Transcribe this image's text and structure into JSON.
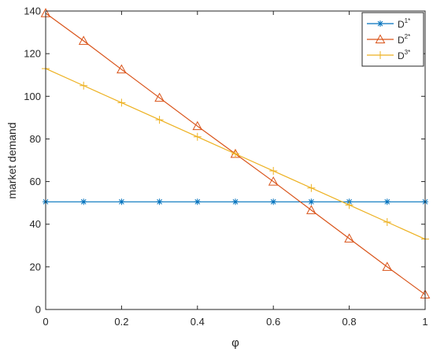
{
  "chart_data": {
    "type": "line",
    "xlabel": "φ",
    "ylabel": "market demand",
    "xlim": [
      0,
      1
    ],
    "ylim": [
      0,
      140
    ],
    "x_ticks": [
      "0",
      "0.2",
      "0.4",
      "0.6",
      "0.8",
      "1"
    ],
    "y_ticks": [
      "0",
      "20",
      "40",
      "60",
      "80",
      "100",
      "120",
      "140"
    ],
    "grid": false,
    "legend_position": "top-right",
    "x": [
      0,
      0.1,
      0.2,
      0.3,
      0.4,
      0.5,
      0.6,
      0.7,
      0.8,
      0.9,
      1.0
    ],
    "series": [
      {
        "name": "D",
        "sup": "1*",
        "marker": "asterisk",
        "color": "#0072BD",
        "values": [
          50.5,
          50.5,
          50.5,
          50.5,
          50.5,
          50.5,
          50.5,
          50.5,
          50.5,
          50.5,
          50.5
        ]
      },
      {
        "name": "D",
        "sup": "2*",
        "marker": "triangle",
        "color": "#D95319",
        "values": [
          139,
          126,
          112.6,
          99.3,
          86,
          73,
          60,
          46.6,
          33.3,
          20,
          7
        ]
      },
      {
        "name": "D",
        "sup": "3*",
        "marker": "plus",
        "color": "#EDB120",
        "values": [
          113,
          105,
          97,
          89,
          81,
          73,
          65,
          57,
          49,
          41,
          33
        ]
      }
    ]
  }
}
